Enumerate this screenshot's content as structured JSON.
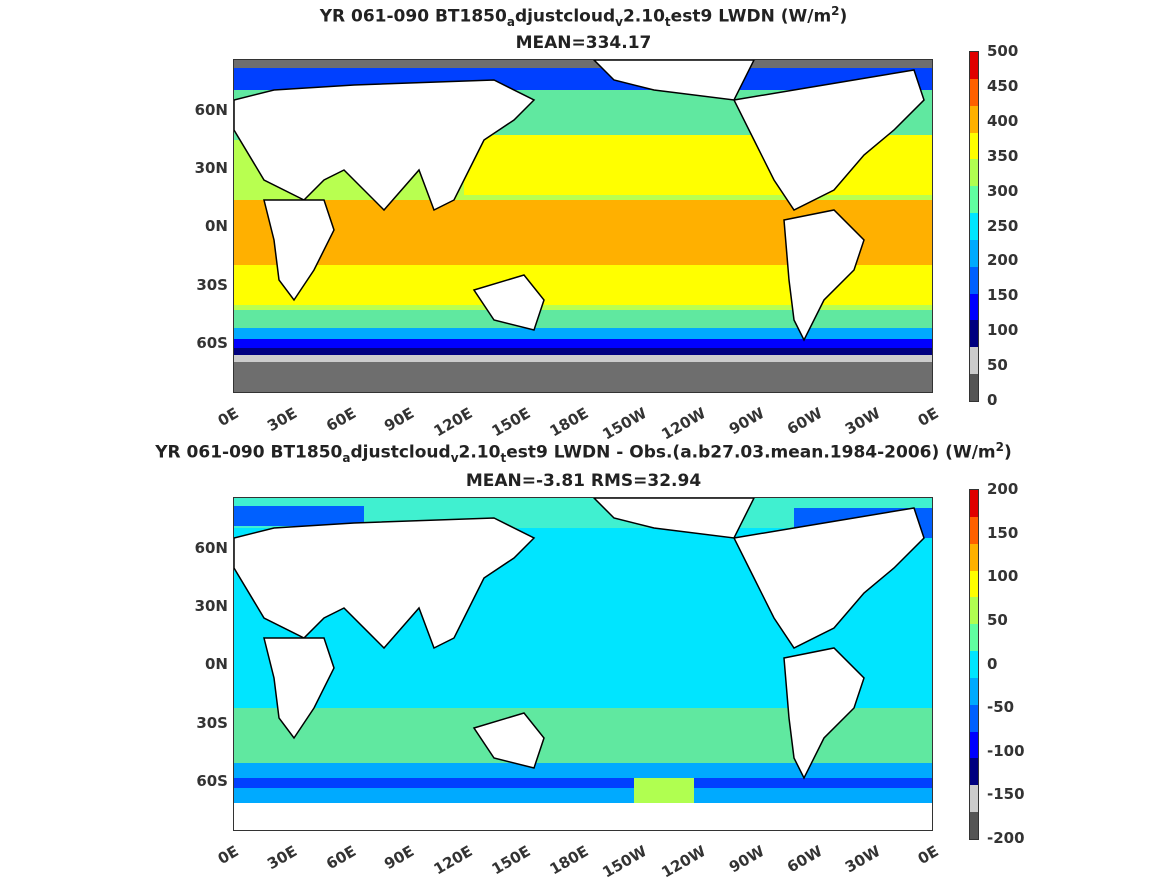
{
  "panel1": {
    "title_parts": {
      "a": "YR 061-090 BT1850",
      "b": "a",
      "c": "djustcloud",
      "d": "v",
      "e": "2.10",
      "f": "t",
      "g": "est9 LWDN (W/m",
      "h": "2",
      "i": ")"
    },
    "subtitle": "MEAN=334.17",
    "y_ticks": [
      "60N",
      "30N",
      "0N",
      "30S",
      "60S"
    ],
    "x_ticks": [
      "0E",
      "30E",
      "60E",
      "90E",
      "120E",
      "150E",
      "180E",
      "150W",
      "120W",
      "90W",
      "60W",
      "30W",
      "0E"
    ],
    "colorbar_ticks": [
      "500",
      "450",
      "400",
      "350",
      "300",
      "250",
      "200",
      "150",
      "100",
      "50",
      "0"
    ],
    "colorbar_colors": [
      "#555555",
      "#cccccc",
      "#00007f",
      "#0000ff",
      "#0060ff",
      "#00aaff",
      "#00e5ff",
      "#60ffa0",
      "#b0ff50",
      "#ffff00",
      "#ffb000",
      "#ff6000",
      "#e00000"
    ]
  },
  "panel2": {
    "title_parts": {
      "a": "YR 061-090 BT1850",
      "b": "a",
      "c": "djustcloud",
      "d": "v",
      "e": "2.10",
      "f": "t",
      "g": "est9 LWDN - Obs.(a.b27.03.mean.1984-2006) (W/m",
      "h": "2",
      "i": ")"
    },
    "subtitle": "MEAN=-3.81 RMS=32.94",
    "y_ticks": [
      "60N",
      "30N",
      "0N",
      "30S",
      "60S"
    ],
    "x_ticks": [
      "0E",
      "30E",
      "60E",
      "90E",
      "120E",
      "150E",
      "180E",
      "150W",
      "120W",
      "90W",
      "60W",
      "30W",
      "0E"
    ],
    "colorbar_ticks": [
      "200",
      "150",
      "100",
      "50",
      "0",
      "-50",
      "-100",
      "-150",
      "-200"
    ],
    "colorbar_colors": [
      "#555555",
      "#cccccc",
      "#00007f",
      "#0000ff",
      "#0060ff",
      "#00aaff",
      "#00e5ff",
      "#60ffa0",
      "#b0ff50",
      "#ffff00",
      "#ffb000",
      "#ff6000",
      "#e00000"
    ]
  }
}
